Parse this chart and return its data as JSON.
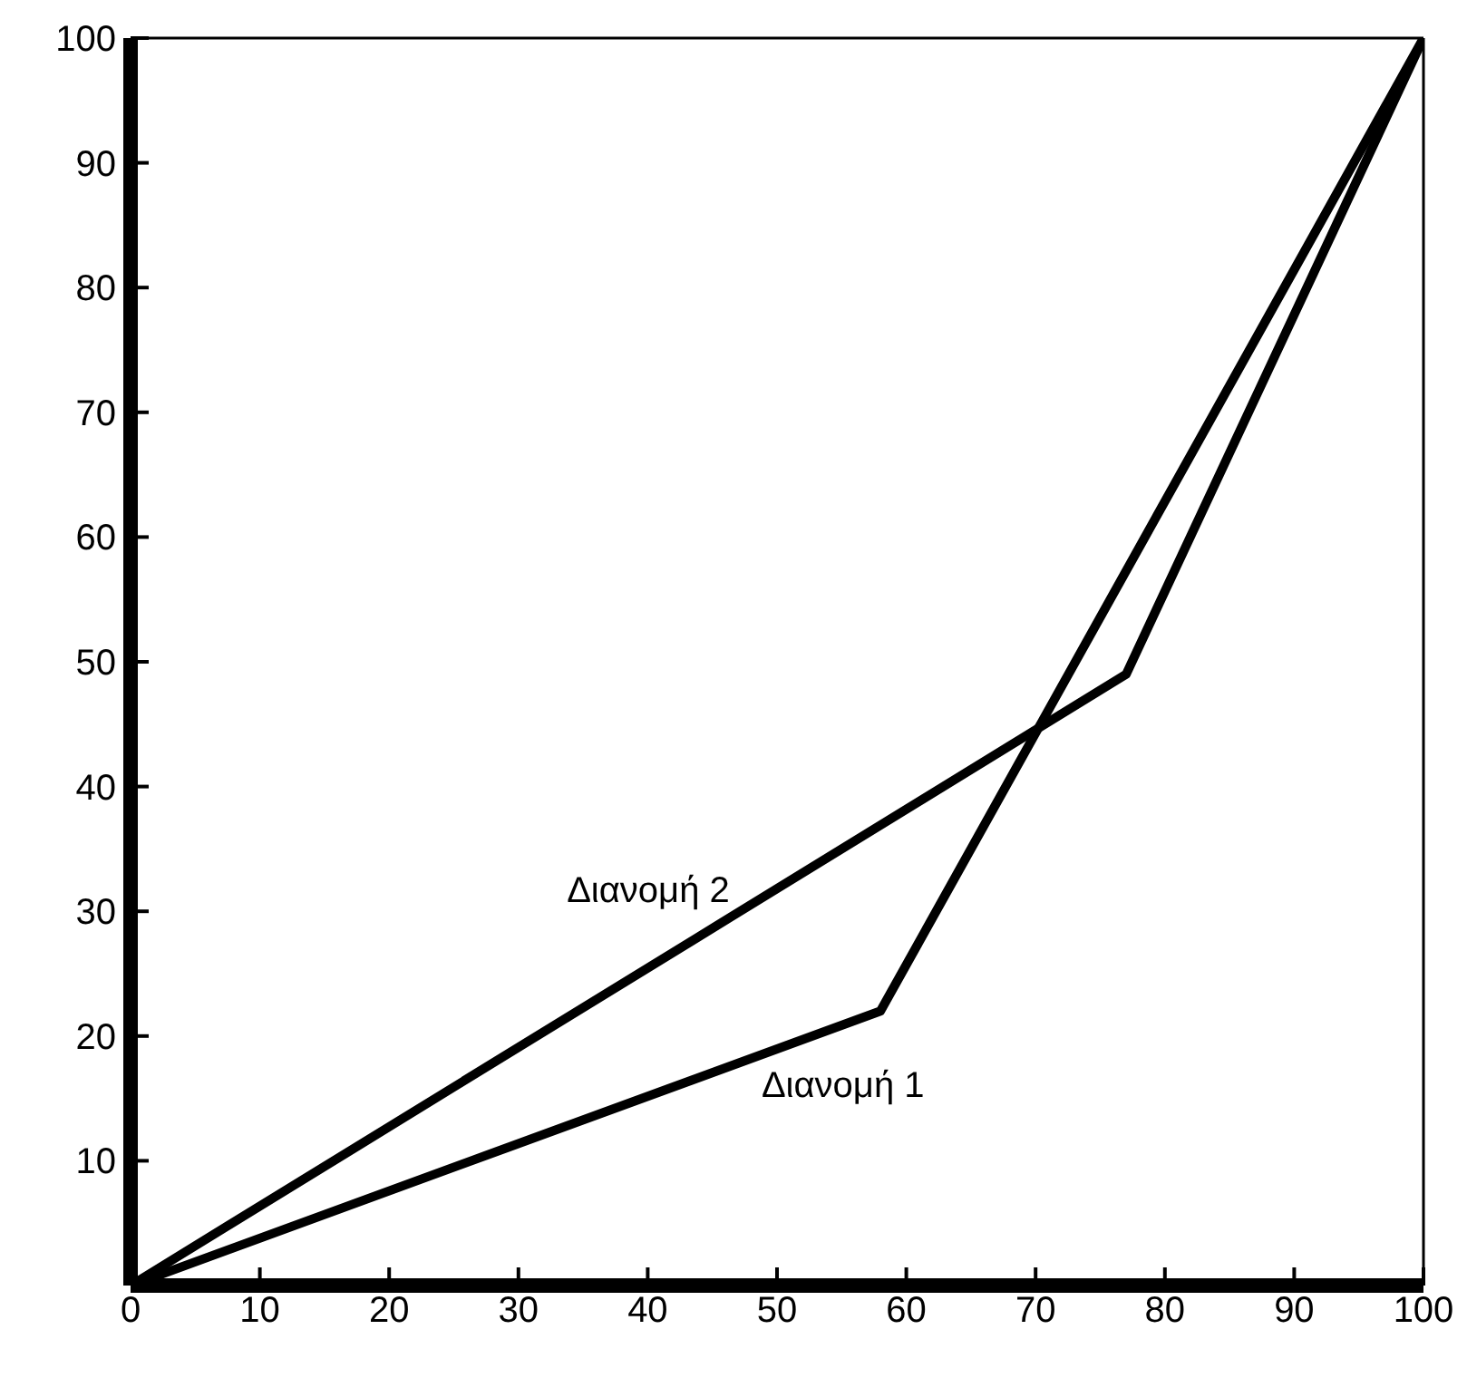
{
  "chart_data": {
    "type": "line",
    "xlim": [
      0,
      100
    ],
    "ylim": [
      0,
      100
    ],
    "xticks": [
      0,
      10,
      20,
      30,
      40,
      50,
      60,
      70,
      80,
      90,
      100
    ],
    "yticks": [
      10,
      20,
      30,
      40,
      50,
      60,
      70,
      80,
      90,
      100
    ],
    "grid": false,
    "legend": false,
    "marker": "none",
    "line_style": "solid",
    "series": [
      {
        "name": "Διανομή 1",
        "color": "#000000",
        "x": [
          0,
          58,
          100
        ],
        "values": [
          0,
          22,
          100
        ]
      },
      {
        "name": "Διανομή 2",
        "color": "#000000",
        "x": [
          0,
          77,
          100
        ],
        "values": [
          0,
          49,
          100
        ]
      }
    ]
  }
}
